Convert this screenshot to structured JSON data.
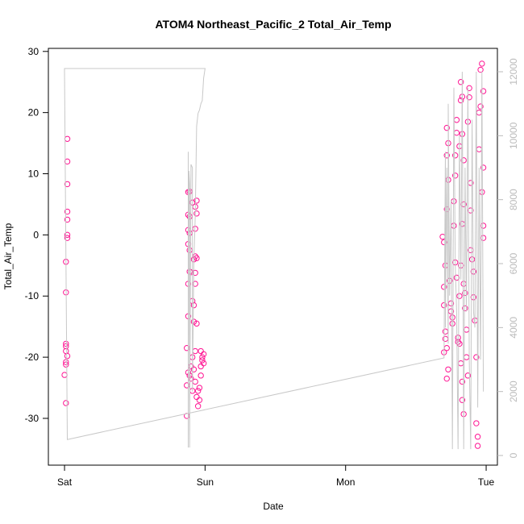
{
  "chart_data": {
    "type": "scatter",
    "title": "ATOM4 Northeast_Pacific_2 Total_Air_Temp",
    "x_label": "Date",
    "y_label": "Total_Air_Temp",
    "xlim": [
      -0.115,
      3.08
    ],
    "ylim": [
      -37.65,
      30.5
    ],
    "y2lim": [
      -302,
      12731
    ],
    "xticks": [
      {
        "value": 0,
        "label": "Sat"
      },
      {
        "value": 1,
        "label": "Sun"
      },
      {
        "value": 2,
        "label": "Mon"
      },
      {
        "value": 3,
        "label": "Tue"
      }
    ],
    "yticks": [
      -30,
      -20,
      -10,
      0,
      10,
      20,
      30
    ],
    "y2ticks": [
      0,
      2000,
      4000,
      6000,
      8000,
      10000,
      12000
    ],
    "series": [
      {
        "color": "#ff1493",
        "x": [
          0.02,
          0.02,
          0.02,
          0.02,
          0.02,
          0.02,
          0.02,
          0.01,
          0.01,
          0.01,
          0.01,
          0.01,
          0.02,
          0.01,
          0.01,
          0.0,
          0.01,
          0.88,
          0.89,
          0.88,
          0.89,
          0.88,
          0.89,
          0.88,
          0.89,
          0.88,
          0.89,
          0.88,
          0.87,
          0.88,
          0.87,
          0.87,
          0.89,
          0.9,
          0.91,
          0.92,
          0.93,
          0.94,
          0.95,
          0.96,
          0.93,
          0.94,
          0.92,
          0.91,
          0.93,
          0.92,
          0.93,
          0.94,
          0.93,
          0.94,
          0.93,
          0.94,
          0.93,
          0.9,
          0.91,
          0.97,
          0.98,
          0.99,
          0.98,
          0.97,
          0.99,
          0.97,
          0.96,
          0.95,
          0.91,
          0.9,
          0.92,
          2.69,
          2.7,
          2.71,
          2.7,
          2.7,
          2.71,
          2.71,
          2.72,
          2.7,
          2.72,
          2.73,
          2.72,
          2.73,
          2.72,
          2.73,
          2.72,
          2.74,
          2.75,
          2.75,
          2.76,
          2.76,
          2.77,
          2.77,
          2.78,
          2.78,
          2.79,
          2.79,
          2.78,
          2.79,
          2.8,
          2.8,
          2.81,
          2.81,
          2.82,
          2.81,
          2.82,
          2.82,
          2.83,
          2.83,
          2.84,
          2.84,
          2.83,
          2.82,
          2.83,
          2.83,
          2.84,
          2.84,
          2.85,
          2.85,
          2.86,
          2.86,
          2.87,
          2.87,
          2.88,
          2.88,
          2.89,
          2.89,
          2.89,
          2.9,
          2.91,
          2.91,
          2.92,
          2.93,
          2.93,
          2.94,
          2.94,
          2.95,
          2.95,
          2.96,
          2.96,
          2.97,
          2.98,
          2.98,
          2.97,
          2.98,
          2.98
        ],
        "values": [
          15.7,
          12,
          8.3,
          3.8,
          2.5,
          0,
          -0.5,
          -4.4,
          -9.4,
          -17.8,
          -18.2,
          -19,
          -19.8,
          -20.8,
          -21.2,
          -22.9,
          -27.5,
          7,
          7.1,
          3.3,
          3,
          0.8,
          0.3,
          -1.5,
          -2.5,
          -8,
          -6,
          -13.3,
          -18.5,
          -22.5,
          -24.6,
          -29.6,
          -23,
          -21.5,
          -20,
          -22,
          -24,
          -26.5,
          -28,
          -27,
          -19,
          -14.5,
          -14.2,
          -10.8,
          -8,
          -4,
          -3.5,
          -3.8,
          1,
          3.5,
          4.6,
          5.6,
          -6.2,
          -6.1,
          5.3,
          -19,
          -20,
          -21,
          -20.5,
          -21.5,
          -19.5,
          -23,
          -25,
          -25.5,
          -25.5,
          -23.5,
          -11.5,
          -0.3,
          -1.2,
          -5,
          -8.5,
          -11.5,
          -15.8,
          -17,
          -18.5,
          -19.2,
          -23.5,
          -22,
          4.2,
          9,
          13,
          15,
          17.5,
          -7.5,
          -11.2,
          -12.5,
          -13.5,
          -14.5,
          1.5,
          5.5,
          9.7,
          13,
          16.7,
          18.8,
          -4.5,
          -7,
          -16.8,
          -17.5,
          -17.8,
          -10,
          -5,
          14.5,
          22,
          25,
          22.6,
          16.5,
          12.2,
          5,
          1.8,
          -21,
          -24,
          -27,
          -29.3,
          -8,
          -9.5,
          -12,
          -15.5,
          -20,
          -23,
          18.5,
          24,
          22.5,
          8.5,
          4,
          -2.5,
          -4,
          -6,
          -10.2,
          -14,
          -20,
          -30.8,
          -33,
          -34.5,
          14,
          20,
          21,
          27,
          28,
          23.5,
          11,
          7,
          1.5,
          -0.5
        ]
      },
      {
        "color": "#c8c8c8",
        "axis": "y2",
        "x": [
          0.88,
          0.88,
          0.885,
          0.89,
          0.89,
          0.9,
          0.91,
          0.91,
          0.92,
          0.93,
          0.94,
          0.95,
          0.96,
          0.97,
          0.98,
          0.99,
          1.0,
          0.0,
          0.02,
          2.7,
          2.71,
          2.71,
          2.72,
          2.73,
          2.73,
          2.74,
          2.75,
          2.76,
          2.77,
          2.78,
          2.79,
          2.8,
          2.81,
          2.82,
          2.83,
          2.84,
          2.85,
          2.86,
          2.87,
          2.88,
          2.89,
          2.9,
          2.91,
          2.92,
          2.93,
          2.94,
          2.95,
          2.96,
          2.97,
          2.98
        ],
        "values": [
          9500,
          250,
          8900,
          8500,
          250,
          9100,
          9000,
          2000,
          6000,
          7500,
          10300,
          10700,
          10800,
          11000,
          11100,
          11800,
          12100,
          12100,
          500,
          3050,
          9500,
          4000,
          9000,
          3500,
          11000,
          5000,
          8000,
          200,
          11500,
          6000,
          4500,
          200,
          10000,
          5500,
          12000,
          200,
          9000,
          4500,
          11500,
          3000,
          200,
          10500,
          4500,
          4000,
          12000,
          1500,
          9000,
          3000,
          12000,
          2000
        ]
      }
    ]
  }
}
